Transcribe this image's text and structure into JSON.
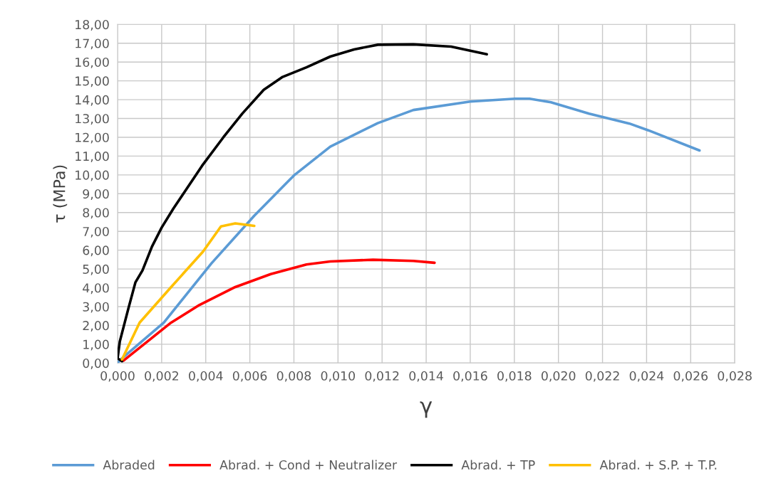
{
  "chart_data": {
    "type": "line",
    "xlabel": "γ",
    "ylabel": "τ (MPa)",
    "xlim": [
      0,
      0.028
    ],
    "ylim": [
      0,
      18
    ],
    "xticks": [
      {
        "value": 0,
        "label": "0,000"
      },
      {
        "value": 0.002,
        "label": "0,002"
      },
      {
        "value": 0.004,
        "label": "0,004"
      },
      {
        "value": 0.006,
        "label": "0,006"
      },
      {
        "value": 0.008,
        "label": "0,008"
      },
      {
        "value": 0.01,
        "label": "0,010"
      },
      {
        "value": 0.012,
        "label": "0,012"
      },
      {
        "value": 0.014,
        "label": "0,014"
      },
      {
        "value": 0.016,
        "label": "0,016"
      },
      {
        "value": 0.018,
        "label": "0,018"
      },
      {
        "value": 0.02,
        "label": "0,020"
      },
      {
        "value": 0.022,
        "label": "0,022"
      },
      {
        "value": 0.024,
        "label": "0,024"
      },
      {
        "value": 0.026,
        "label": "0,026"
      },
      {
        "value": 0.028,
        "label": "0,028"
      }
    ],
    "yticks": [
      {
        "value": 0,
        "label": "0,00"
      },
      {
        "value": 1,
        "label": "1,00"
      },
      {
        "value": 2,
        "label": "2,00"
      },
      {
        "value": 3,
        "label": "3,00"
      },
      {
        "value": 4,
        "label": "4,00"
      },
      {
        "value": 5,
        "label": "5,00"
      },
      {
        "value": 6,
        "label": "6,00"
      },
      {
        "value": 7,
        "label": "7,00"
      },
      {
        "value": 8,
        "label": "8,00"
      },
      {
        "value": 9,
        "label": "9,00"
      },
      {
        "value": 10,
        "label": "10,00"
      },
      {
        "value": 11,
        "label": "11,00"
      },
      {
        "value": 12,
        "label": "12,00"
      },
      {
        "value": 13,
        "label": "13,00"
      },
      {
        "value": 14,
        "label": "14,00"
      },
      {
        "value": 15,
        "label": "15,00"
      },
      {
        "value": 16,
        "label": "16,00"
      },
      {
        "value": 17,
        "label": "17,00"
      },
      {
        "value": 18,
        "label": "18,00"
      }
    ],
    "grid": true,
    "legend": "bottom",
    "marker": "none",
    "line_style": "solid",
    "series": [
      {
        "name": "Abraded",
        "color": "#5b9bd5",
        "x": [
          0,
          0.0001,
          0.0021,
          0.00426,
          0.0062,
          0.008,
          0.00965,
          0.0118,
          0.01342,
          0.016,
          0.01804,
          0.01869,
          0.01966,
          0.02139,
          0.02322,
          0.02408,
          0.0264
        ],
        "values": [
          0,
          0.15,
          2.15,
          5.3,
          7.83,
          9.97,
          11.5,
          12.75,
          13.45,
          13.9,
          14.05,
          14.05,
          13.86,
          13.26,
          12.73,
          12.37,
          11.3
        ]
      },
      {
        "name": "Abrad. + Cond + Neutralizer",
        "color": "#ff0000",
        "x": [
          0.00027,
          0.00243,
          0.00372,
          0.00534,
          0.00695,
          0.00857,
          0.00965,
          0.01159,
          0.01342,
          0.01438
        ],
        "values": [
          0.13,
          2.15,
          3.09,
          4.04,
          4.73,
          5.24,
          5.4,
          5.49,
          5.43,
          5.33
        ]
      },
      {
        "name": "Abrad. + TP",
        "color": "#000000",
        "x": [
          0.0002,
          0,
          0.0001,
          0.00049,
          0.00081,
          0.00113,
          0.00156,
          0.002,
          0.00253,
          0.00318,
          0.00383,
          0.0048,
          0.00566,
          0.00663,
          0.00749,
          0.00857,
          0.00965,
          0.01073,
          0.01181,
          0.01342,
          0.01513,
          0.01675
        ],
        "values": [
          0.1,
          0.25,
          1.14,
          2.9,
          4.29,
          4.92,
          6.19,
          7.2,
          8.21,
          9.34,
          10.48,
          12.0,
          13.26,
          14.52,
          15.21,
          15.72,
          16.29,
          16.67,
          16.92,
          16.94,
          16.82,
          16.41
        ]
      },
      {
        "name": "Abrad. + S.P. + T.P.",
        "color": "#ffc000",
        "x": [
          0.0002,
          0.001,
          0.00243,
          0.00388,
          0.00469,
          0.00534,
          0.0062
        ],
        "values": [
          0.19,
          2.15,
          4.04,
          5.93,
          7.26,
          7.42,
          7.29
        ]
      }
    ]
  }
}
